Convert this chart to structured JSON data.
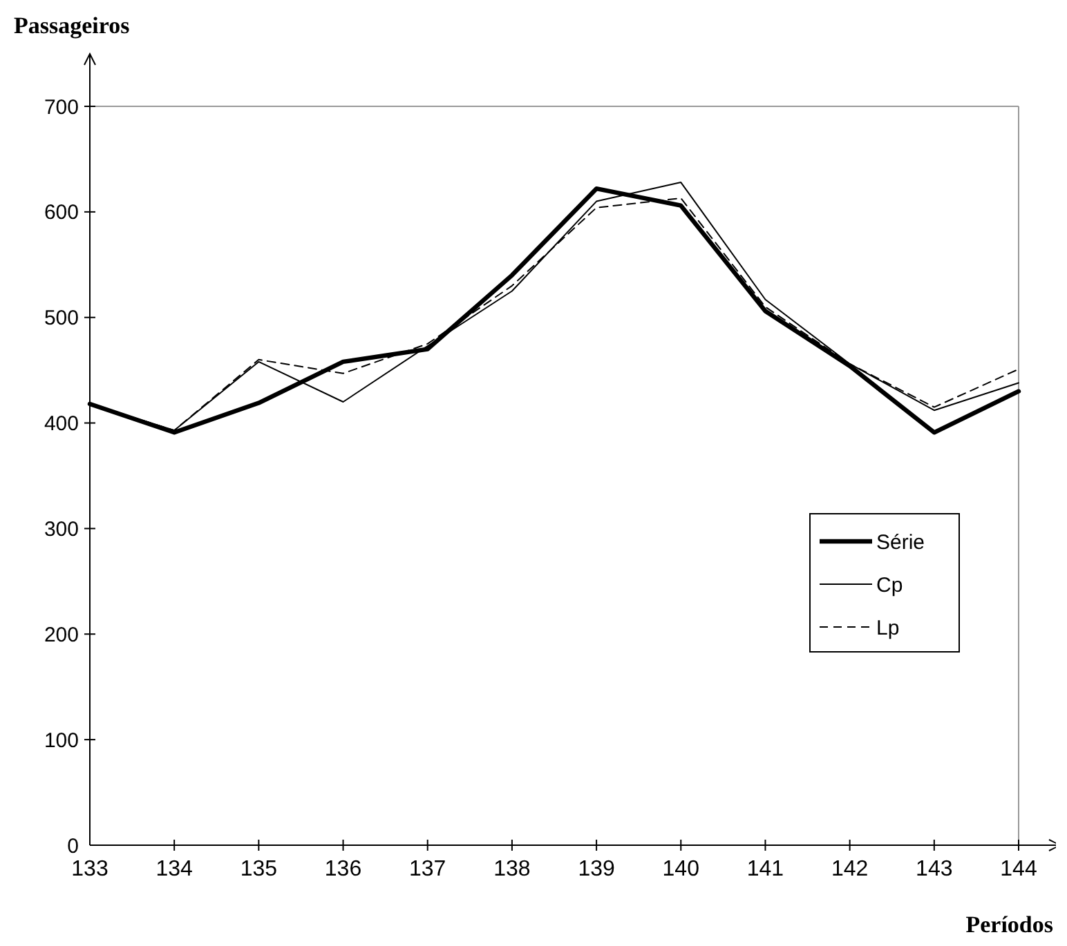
{
  "chart_data": {
    "type": "line",
    "xlabel": "Períodos",
    "ylabel": "Passageiros",
    "x": [
      133,
      134,
      135,
      136,
      137,
      138,
      139,
      140,
      141,
      142,
      143,
      144
    ],
    "xlim": [
      133,
      144
    ],
    "xticks": [
      133,
      134,
      135,
      136,
      137,
      138,
      139,
      140,
      141,
      142,
      143,
      144
    ],
    "ylim": [
      0,
      700
    ],
    "yticks": [
      0,
      100,
      200,
      300,
      400,
      500,
      600,
      700
    ],
    "grid": false,
    "legend": "right",
    "series": [
      {
        "name": "Série",
        "color": "#000000",
        "line_style": "solid",
        "values": [
          418,
          391,
          419,
          458,
          470,
          540,
          622,
          606,
          506,
          454,
          391,
          430
        ]
      },
      {
        "name": "Cp",
        "color": "#000000",
        "line_style": "solid",
        "values": [
          418,
          393,
          458,
          420,
          473,
          525,
          610,
          628,
          517,
          456,
          412,
          438
        ]
      },
      {
        "name": "Lp",
        "color": "#000000",
        "line_style": "dashed",
        "values": [
          418,
          393,
          460,
          447,
          475,
          530,
          604,
          613,
          510,
          456,
          415,
          451
        ]
      }
    ]
  }
}
